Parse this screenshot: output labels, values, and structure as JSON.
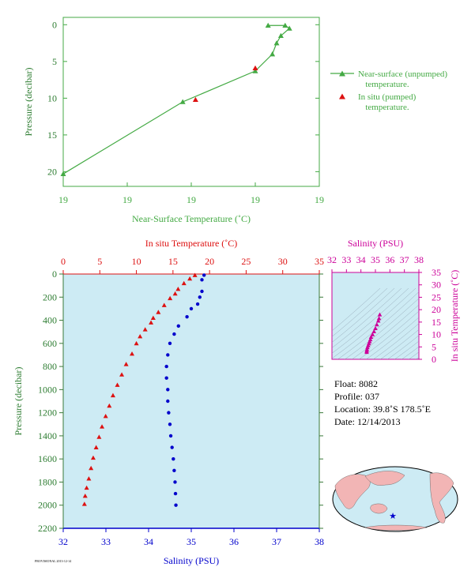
{
  "colors": {
    "green": "#44aa44",
    "green_dark": "#2e7d32",
    "red": "#dd1111",
    "blue": "#0000cc",
    "magenta": "#cc0099",
    "plot_bg": "#cdebf4",
    "tick_green": "#3a7a3a"
  },
  "top_chart": {
    "ylabel": "Pressure (decibar)",
    "xlabel": "Near-Surface Temperature (˚C)",
    "x_ticks": [
      "19",
      "19",
      "19",
      "19",
      "19"
    ],
    "y_ticks": [
      "0",
      "5",
      "10",
      "15",
      "20"
    ],
    "legend": {
      "near_surface": "Near-surface (unpumped) temperature.",
      "near_surface_line1": "Near-surface (unpumped)",
      "near_surface_line2": "temperature.",
      "in_situ": "In situ (pumped) temperature.",
      "in_situ_line1": "In situ (pumped)",
      "in_situ_line2": "temperature."
    }
  },
  "main_chart": {
    "top_xlabel": "In situ Temperature (˚C)",
    "bottom_xlabel": "Salinity (PSU)",
    "ylabel": "Pressure (decibar)",
    "temp_ticks": [
      "0",
      "5",
      "10",
      "15",
      "20",
      "25",
      "30",
      "35"
    ],
    "sal_ticks": [
      "32",
      "33",
      "34",
      "35",
      "36",
      "37",
      "38"
    ],
    "p_ticks": [
      "0",
      "200",
      "400",
      "600",
      "800",
      "1000",
      "1200",
      "1400",
      "1600",
      "1800",
      "2000",
      "2200"
    ]
  },
  "ts_chart": {
    "title": "Salinity (PSU)",
    "ylabel": "In situ Temperature (˚C)",
    "x_ticks": [
      "32",
      "33",
      "34",
      "35",
      "36",
      "37",
      "38"
    ],
    "y_ticks": [
      "0",
      "5",
      "10",
      "15",
      "20",
      "25",
      "30",
      "35"
    ]
  },
  "info": {
    "float": "Float:  8082",
    "profile": "Profile:  037",
    "location": "Location:  39.8˚S  178.5˚E",
    "date": "Date:  12/14/2013"
  },
  "footer": "PROVISIONAL 2013-12-14",
  "chart_data": [
    {
      "type": "line",
      "x_axis_ticks_shown": [
        "19",
        "19",
        "19",
        "19",
        "19"
      ],
      "ylim": [
        22,
        -1
      ],
      "series": [
        {
          "name": "Near-surface (unpumped) temperature.",
          "x": [
            19.48,
            19.52,
            19.53,
            19.51,
            19.5,
            19.49,
            19.45,
            19.28,
            19.0
          ],
          "y": [
            0.1,
            0.1,
            0.5,
            1.5,
            2.5,
            4.0,
            6.3,
            10.5,
            20.3
          ]
        },
        {
          "name": "In situ (pumped) temperature.",
          "x": [
            19.45,
            19.31
          ],
          "y": [
            5.9,
            10.2
          ]
        }
      ]
    },
    {
      "type": "scatter",
      "xlim_temperature": [
        0,
        35
      ],
      "xlim_salinity": [
        32,
        38
      ],
      "ylim": [
        2200,
        0
      ],
      "series": [
        {
          "name": "In situ Temperature (˚C)",
          "x": [
            18.0,
            17.3,
            16.5,
            15.7,
            15.3,
            14.6,
            13.8,
            13.0,
            12.3,
            12.0,
            11.2,
            10.5,
            10.0,
            9.4,
            8.6,
            8.0,
            7.4,
            6.8,
            6.3,
            5.8,
            5.3,
            4.9,
            4.5,
            4.1,
            3.8,
            3.5,
            3.2,
            3.0,
            2.9
          ],
          "y": [
            10,
            40,
            80,
            130,
            170,
            210,
            270,
            330,
            380,
            420,
            480,
            540,
            600,
            690,
            780,
            870,
            960,
            1050,
            1140,
            1230,
            1320,
            1410,
            1500,
            1590,
            1680,
            1770,
            1850,
            1920,
            1990
          ]
        },
        {
          "name": "Salinity (PSU)",
          "x": [
            35.3,
            35.25,
            35.25,
            35.2,
            35.15,
            35.0,
            34.9,
            34.7,
            34.6,
            34.5,
            34.45,
            34.42,
            34.42,
            34.45,
            34.45,
            34.47,
            34.5,
            34.52,
            34.55,
            34.58,
            34.6,
            34.62,
            34.63,
            34.64
          ],
          "y": [
            10,
            50,
            150,
            200,
            260,
            300,
            370,
            450,
            520,
            600,
            700,
            800,
            900,
            1000,
            1100,
            1200,
            1300,
            1400,
            1500,
            1600,
            1700,
            1800,
            1900,
            2000
          ]
        }
      ]
    },
    {
      "type": "scatter",
      "title": "Salinity (PSU)",
      "ylabel": "In situ Temperature (˚C)",
      "xlim": [
        32,
        38
      ],
      "ylim": [
        0,
        35
      ],
      "series": [
        {
          "name": "T-S",
          "x": [
            35.3,
            35.25,
            35.2,
            35.1,
            35.0,
            34.9,
            34.8,
            34.7,
            34.65,
            34.6,
            34.55,
            34.5,
            34.45,
            34.42,
            34.4,
            34.4
          ],
          "y": [
            18.0,
            16.5,
            15.5,
            14.0,
            12.5,
            11.2,
            10.0,
            9.0,
            8.0,
            7.2,
            6.4,
            5.6,
            4.8,
            4.0,
            3.4,
            2.9
          ]
        }
      ]
    }
  ]
}
